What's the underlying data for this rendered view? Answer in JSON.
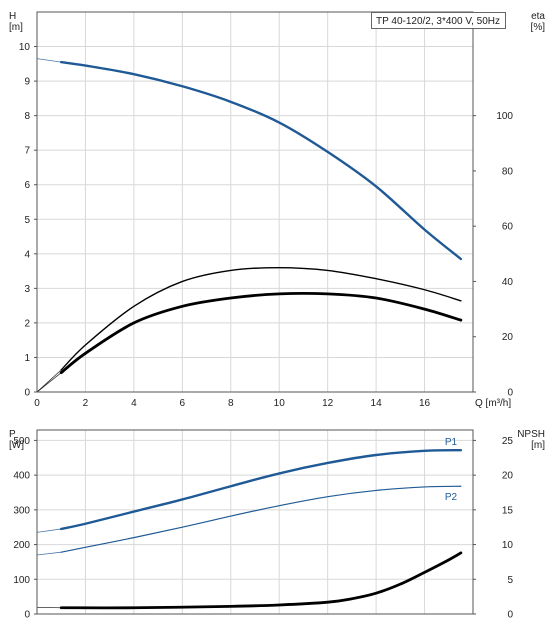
{
  "header_label": "TP 40-120/2, 3*400 V, 50Hz",
  "colors": {
    "blue": "#1f5a96",
    "black": "#000000",
    "grid": "#d8d8d8"
  },
  "chart_data": [
    {
      "type": "line",
      "x_label": "Q [m³/h]",
      "xlim": [
        0,
        18
      ],
      "x_ticks": [
        "0",
        "2",
        "4",
        "6",
        "8",
        "10",
        "12",
        "14",
        "16"
      ],
      "y_label_left": [
        "H",
        "[m]"
      ],
      "ylim_left": [
        0,
        11
      ],
      "y_ticks_left": [
        "0",
        "1",
        "2",
        "3",
        "4",
        "5",
        "6",
        "7",
        "8",
        "9",
        "10"
      ],
      "y_label_right": [
        "eta",
        "[%]"
      ],
      "ylim_right": [
        0,
        137.5
      ],
      "y_ticks_right": [
        "0",
        "20",
        "40",
        "60",
        "80",
        "100"
      ],
      "grid": true,
      "series": [
        {
          "axis": "left",
          "color": "blue",
          "width": 2.4,
          "x": [
            1.0,
            2,
            4,
            6,
            8,
            10,
            12,
            14,
            16,
            17.5
          ],
          "y": [
            9.55,
            9.45,
            9.2,
            8.85,
            8.4,
            7.8,
            6.95,
            5.95,
            4.7,
            3.85
          ],
          "ext_x": [
            0,
            1.0
          ],
          "ext_y": [
            9.65,
            9.55
          ]
        },
        {
          "axis": "right",
          "color": "black",
          "width": 1.4,
          "x": [
            1.0,
            2,
            4,
            6,
            8,
            10,
            12,
            14,
            16,
            17.5
          ],
          "y": [
            8,
            17,
            31,
            40,
            44,
            45,
            44,
            41,
            37,
            33
          ],
          "ext_x": [
            0,
            1.0
          ],
          "ext_y": [
            0,
            8
          ]
        },
        {
          "axis": "right",
          "color": "black",
          "width": 2.8,
          "x": [
            1.0,
            2,
            4,
            6,
            8,
            10,
            12,
            14,
            16,
            17.5
          ],
          "y": [
            7,
            14,
            25,
            31,
            34,
            35.5,
            35.5,
            34,
            30,
            26
          ],
          "ext_x": [
            0,
            1.0
          ],
          "ext_y": [
            0,
            7
          ]
        }
      ]
    },
    {
      "type": "line",
      "xlim": [
        0,
        18
      ],
      "y_label_left": [
        "P",
        "[W]"
      ],
      "ylim_left": [
        0,
        530
      ],
      "y_ticks_left": [
        "0",
        "100",
        "200",
        "300",
        "400",
        "500"
      ],
      "y_label_right": [
        "NPSH",
        "[m]"
      ],
      "ylim_right": [
        0,
        26.5
      ],
      "y_ticks_right": [
        "0",
        "5",
        "10",
        "15",
        "20",
        "25"
      ],
      "grid": true,
      "series": [
        {
          "name": "P1",
          "axis": "left",
          "color": "blue",
          "width": 2.4,
          "x": [
            1.0,
            2,
            4,
            6,
            8,
            10,
            12,
            14,
            16,
            17.5
          ],
          "y": [
            245,
            260,
            295,
            330,
            368,
            405,
            435,
            458,
            470,
            472
          ],
          "ext_x": [
            0,
            1.0
          ],
          "ext_y": [
            235,
            245
          ]
        },
        {
          "name": "P2",
          "axis": "left",
          "color": "blue",
          "width": 1.2,
          "x": [
            1.0,
            2,
            4,
            6,
            8,
            10,
            12,
            14,
            16,
            17.5
          ],
          "y": [
            178,
            192,
            220,
            250,
            282,
            312,
            338,
            356,
            366,
            368
          ],
          "ext_x": [
            0,
            1.0
          ],
          "ext_y": [
            170,
            178
          ]
        },
        {
          "axis": "right",
          "color": "black",
          "width": 2.8,
          "x": [
            1.0,
            4,
            8,
            10,
            12,
            13,
            14,
            15,
            16,
            17,
            17.5
          ],
          "y": [
            0.9,
            0.9,
            1.1,
            1.3,
            1.7,
            2.2,
            3.0,
            4.3,
            6.0,
            7.8,
            8.8
          ],
          "ext_x": [
            0,
            1.0
          ],
          "ext_y": [
            0.95,
            0.9
          ]
        }
      ]
    }
  ]
}
